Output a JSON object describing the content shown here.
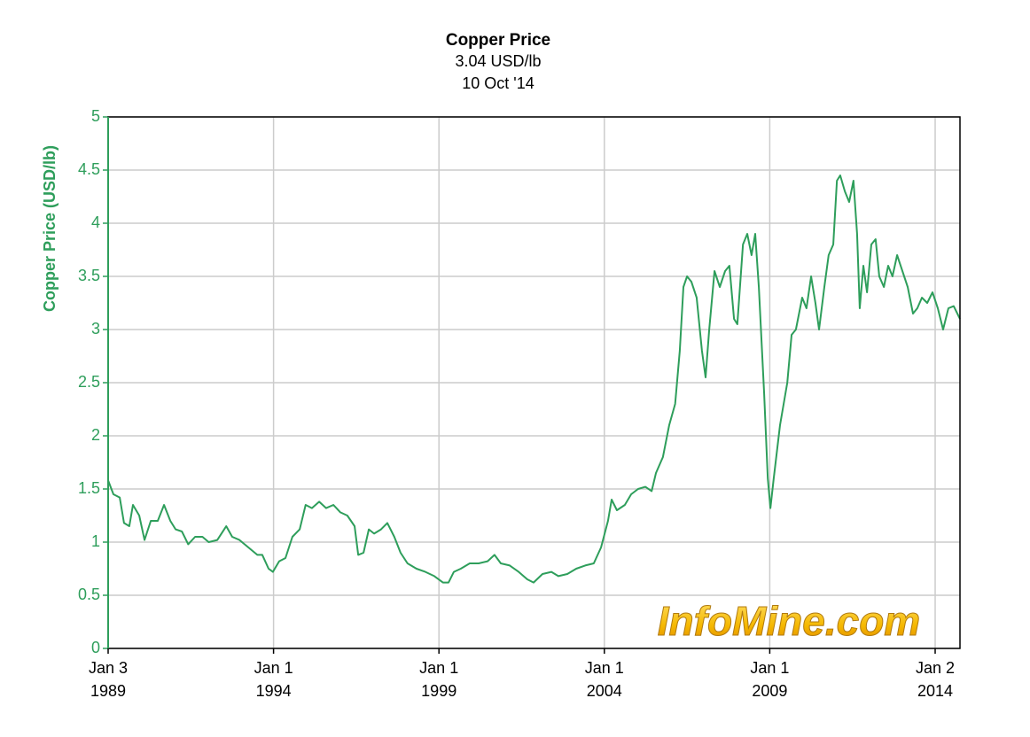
{
  "chart_data": {
    "type": "line",
    "title": "Copper Price",
    "subtitle": "3.04 USD/lb",
    "date": "10 Oct '14",
    "y_label": "Copper Price (USD/lb)",
    "watermark": "InfoMine.com",
    "color": "#2e9e5b",
    "grid": true,
    "xlim": [
      1989.0,
      2014.75
    ],
    "xticks": [
      {
        "value": 1989.0,
        "label": "Jan 3\n1989"
      },
      {
        "value": 1994.0,
        "label": "Jan 1\n1994"
      },
      {
        "value": 1999.0,
        "label": "Jan 1\n1999"
      },
      {
        "value": 2004.0,
        "label": "Jan 1\n2004"
      },
      {
        "value": 2009.0,
        "label": "Jan 1\n2009"
      },
      {
        "value": 2014.0,
        "label": "Jan 2\n2014"
      }
    ],
    "ylim": [
      0,
      5
    ],
    "yticks": [
      0,
      0.5,
      1,
      1.5,
      2,
      2.5,
      3,
      3.5,
      4,
      4.5,
      5
    ],
    "x": [
      1989.0,
      1989.16,
      1989.35,
      1989.48,
      1989.64,
      1989.75,
      1989.94,
      1990.1,
      1990.29,
      1990.5,
      1990.69,
      1990.88,
      1991.04,
      1991.23,
      1991.42,
      1991.63,
      1991.85,
      1992.04,
      1992.3,
      1992.57,
      1992.75,
      1992.97,
      1993.24,
      1993.51,
      1993.66,
      1993.85,
      1993.98,
      1994.17,
      1994.36,
      1994.57,
      1994.79,
      1994.97,
      1995.16,
      1995.38,
      1995.59,
      1995.81,
      1996.02,
      1996.23,
      1996.45,
      1996.56,
      1996.72,
      1996.88,
      1997.04,
      1997.25,
      1997.44,
      1997.65,
      1997.84,
      1998.05,
      1998.32,
      1998.59,
      1998.86,
      1999.12,
      1999.29,
      1999.45,
      1999.66,
      1999.93,
      2000.2,
      2000.47,
      2000.68,
      2000.87,
      2001.14,
      2001.41,
      2001.67,
      2001.86,
      2002.13,
      2002.4,
      2002.61,
      2002.88,
      2003.15,
      2003.42,
      2003.68,
      2003.9,
      2004.11,
      2004.22,
      2004.38,
      2004.62,
      2004.81,
      2005.02,
      2005.24,
      2005.43,
      2005.56,
      2005.77,
      2005.96,
      2006.14,
      2006.28,
      2006.39,
      2006.5,
      2006.63,
      2006.79,
      2006.95,
      2007.06,
      2007.17,
      2007.33,
      2007.49,
      2007.65,
      2007.78,
      2007.92,
      2008.02,
      2008.19,
      2008.32,
      2008.45,
      2008.56,
      2008.67,
      2008.83,
      2008.94,
      2009.02,
      2009.12,
      2009.31,
      2009.53,
      2009.66,
      2009.79,
      2009.98,
      2010.11,
      2010.25,
      2010.38,
      2010.49,
      2010.65,
      2010.78,
      2010.92,
      2011.03,
      2011.13,
      2011.27,
      2011.4,
      2011.53,
      2011.64,
      2011.72,
      2011.83,
      2011.94,
      2012.07,
      2012.2,
      2012.31,
      2012.45,
      2012.58,
      2012.71,
      2012.85,
      2013.01,
      2013.17,
      2013.33,
      2013.46,
      2013.6,
      2013.76,
      2013.92,
      2014.08,
      2014.24,
      2014.4,
      2014.56,
      2014.75
    ],
    "values": [
      1.58,
      1.45,
      1.42,
      1.18,
      1.15,
      1.35,
      1.25,
      1.02,
      1.2,
      1.2,
      1.35,
      1.2,
      1.12,
      1.1,
      0.98,
      1.05,
      1.05,
      1.0,
      1.02,
      1.15,
      1.05,
      1.02,
      0.95,
      0.88,
      0.88,
      0.75,
      0.72,
      0.82,
      0.85,
      1.05,
      1.12,
      1.35,
      1.32,
      1.38,
      1.32,
      1.35,
      1.28,
      1.25,
      1.15,
      0.88,
      0.9,
      1.12,
      1.08,
      1.12,
      1.18,
      1.05,
      0.9,
      0.8,
      0.75,
      0.72,
      0.68,
      0.62,
      0.62,
      0.72,
      0.75,
      0.8,
      0.8,
      0.82,
      0.88,
      0.8,
      0.78,
      0.72,
      0.65,
      0.62,
      0.7,
      0.72,
      0.68,
      0.7,
      0.75,
      0.78,
      0.8,
      0.95,
      1.2,
      1.4,
      1.3,
      1.35,
      1.45,
      1.5,
      1.52,
      1.48,
      1.65,
      1.8,
      2.1,
      2.3,
      2.8,
      3.4,
      3.5,
      3.45,
      3.3,
      2.8,
      2.55,
      3.0,
      3.55,
      3.4,
      3.55,
      3.6,
      3.1,
      3.05,
      3.8,
      3.9,
      3.7,
      3.9,
      3.4,
      2.4,
      1.6,
      1.32,
      1.6,
      2.1,
      2.5,
      2.95,
      3.0,
      3.3,
      3.2,
      3.5,
      3.25,
      3.0,
      3.4,
      3.7,
      3.8,
      4.4,
      4.45,
      4.3,
      4.2,
      4.4,
      3.9,
      3.2,
      3.6,
      3.35,
      3.8,
      3.85,
      3.5,
      3.4,
      3.6,
      3.5,
      3.7,
      3.55,
      3.4,
      3.15,
      3.2,
      3.3,
      3.25,
      3.35,
      3.2,
      3.0,
      3.2,
      3.22,
      3.1
    ]
  }
}
